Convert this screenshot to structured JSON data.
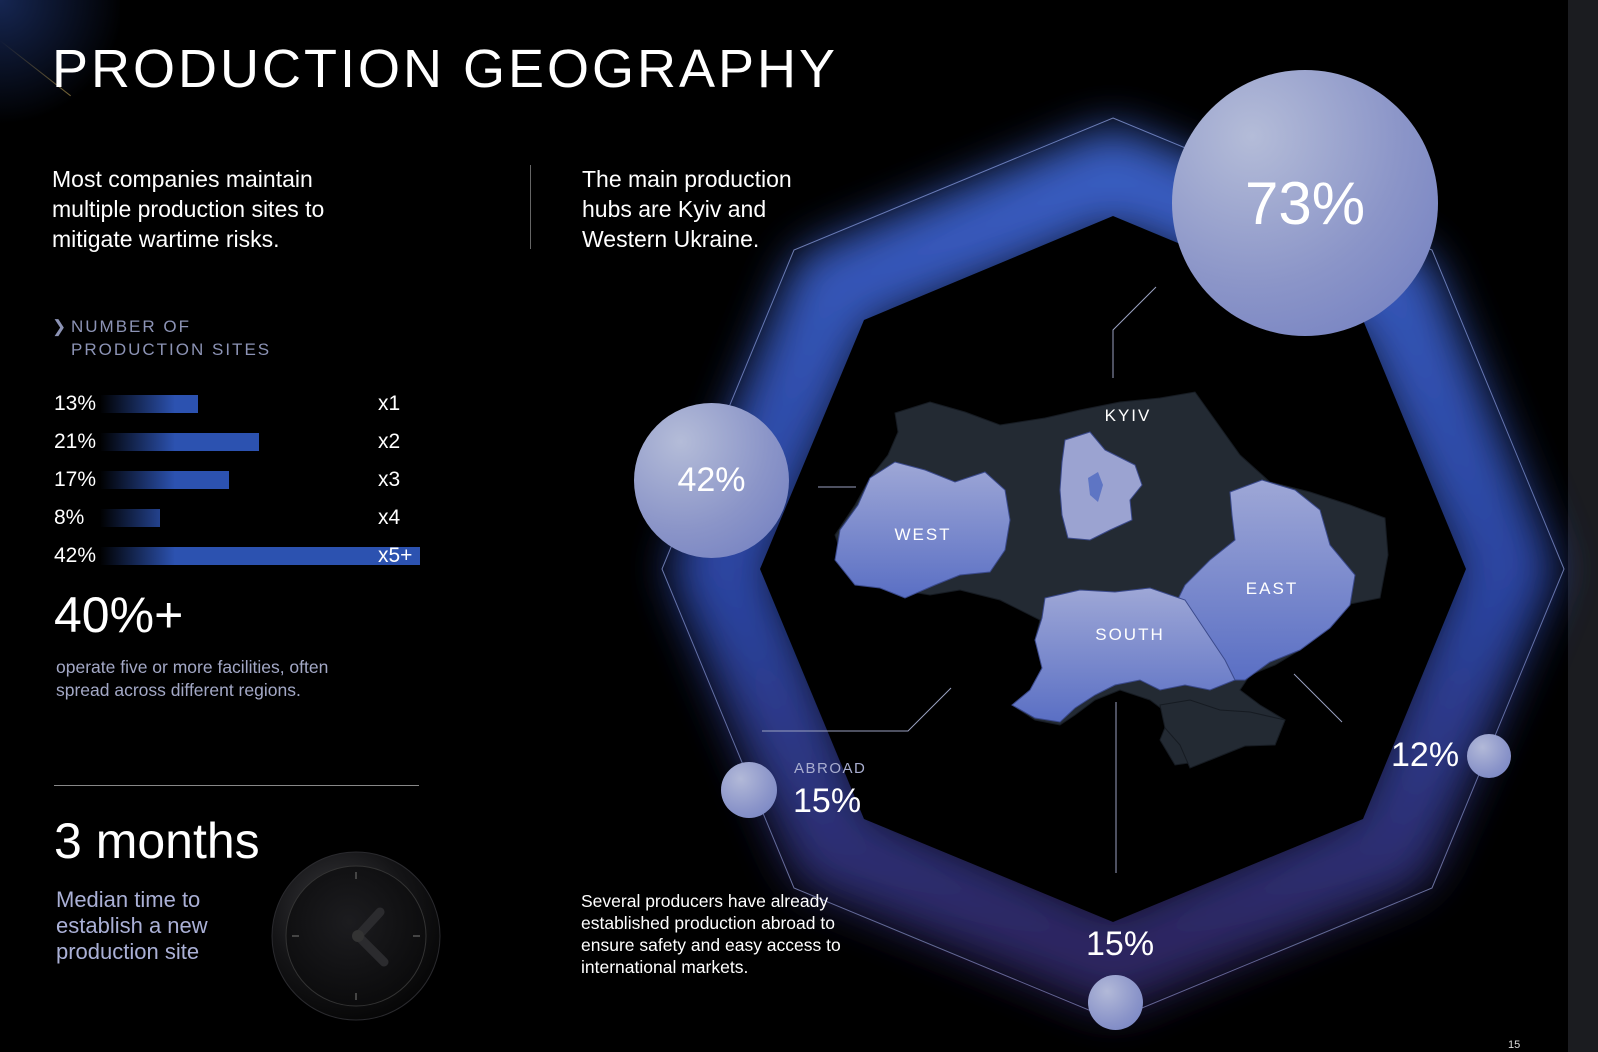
{
  "title": "PRODUCTION GEOGRAPHY",
  "intro_left": "Most companies maintain multiple production sites to mitigate wartime risks.",
  "intro_right": "The main production hubs are Kyiv and Western Ukraine.",
  "chart_data": [
    {
      "type": "bar",
      "orientation": "horizontal",
      "title": "NUMBER OF PRODUCTION SITES",
      "categories": [
        "x1",
        "x2",
        "x3",
        "x4",
        "x5+"
      ],
      "values": [
        13,
        21,
        17,
        8,
        42
      ],
      "value_labels": [
        "13%",
        "21%",
        "17%",
        "8%",
        "42%"
      ],
      "unit": "%",
      "color": "#2c52b0"
    },
    {
      "type": "map",
      "regions": [
        {
          "name": "KYIV",
          "value": 73,
          "label": "73%"
        },
        {
          "name": "WEST",
          "value": 42,
          "label": "42%"
        },
        {
          "name": "SOUTH",
          "value": 15,
          "label": "15%"
        },
        {
          "name": "EAST",
          "value": 12,
          "label": "12%"
        },
        {
          "name": "ABROAD",
          "value": 15,
          "label": "15%"
        }
      ],
      "highlight_color": "#8c96cc",
      "base_color": "#232a33"
    }
  ],
  "stat_five_plus": {
    "value": "40%+",
    "description": "operate five or more facilities, often spread across different regions."
  },
  "median_time": {
    "value": "3 months",
    "description": "Median time to establish a new production site"
  },
  "abroad_note": "Several producers have already established production abroad to ensure safety and easy access to international markets.",
  "abroad_caption": "ABROAD",
  "page_number": "15",
  "icons": [
    "chevron-right-icon",
    "clock-icon"
  ]
}
